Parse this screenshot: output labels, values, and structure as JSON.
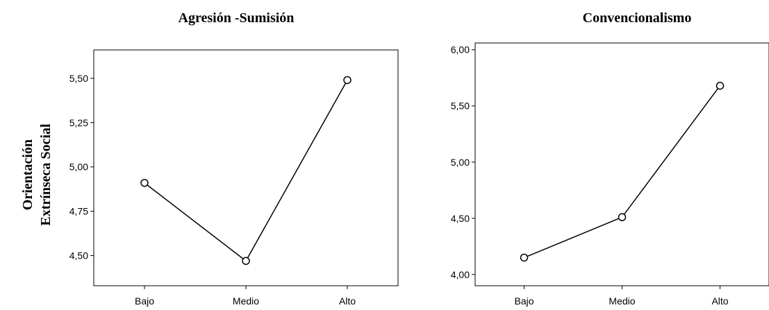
{
  "y_axis_label_lines": [
    "Orientación",
    "Extrínseca Social"
  ],
  "chart_data": [
    {
      "type": "line",
      "title": "Agresión -Sumisión",
      "xlabel": "",
      "ylabel": "Orientación Extrínseca Social",
      "categories": [
        "Bajo",
        "Medio",
        "Alto"
      ],
      "values": [
        4.91,
        4.47,
        5.49
      ],
      "ylim": [
        4.33,
        5.66
      ],
      "yticks": [
        4.5,
        4.75,
        5.0,
        5.25,
        5.5
      ],
      "ytick_labels": [
        "4,50",
        "4,75",
        "5,00",
        "5,25",
        "5,50"
      ],
      "grid": false,
      "marker": "open-circle"
    },
    {
      "type": "line",
      "title": "Convencionalismo",
      "xlabel": "",
      "ylabel": "",
      "categories": [
        "Bajo",
        "Medio",
        "Alto"
      ],
      "values": [
        4.15,
        4.51,
        5.68
      ],
      "ylim": [
        3.9,
        6.06
      ],
      "yticks": [
        4.0,
        4.5,
        5.0,
        5.5,
        6.0
      ],
      "ytick_labels": [
        "4,00",
        "4,50",
        "5,00",
        "5,50",
        "6,00"
      ],
      "grid": false,
      "marker": "open-circle"
    }
  ]
}
